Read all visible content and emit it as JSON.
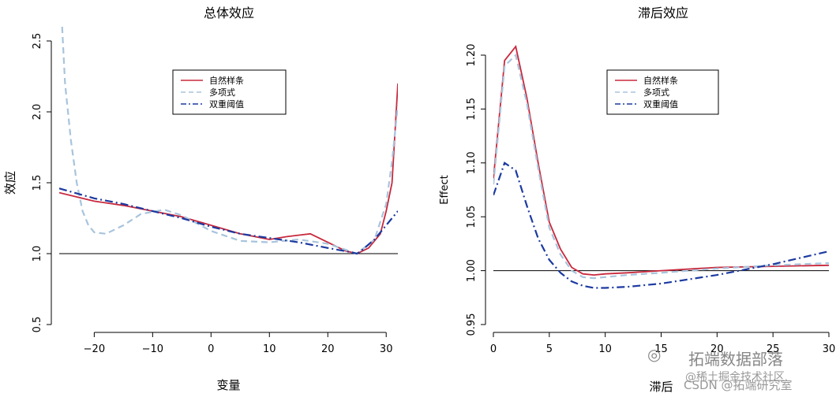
{
  "chart_data": [
    {
      "type": "line",
      "title": "总体效应",
      "xlabel": "变量",
      "ylabel": "效应",
      "xlim": [
        -26,
        32
      ],
      "ylim": [
        0.5,
        2.5
      ],
      "xticks": [
        -20,
        -10,
        0,
        10,
        20,
        30
      ],
      "yticks": [
        0.5,
        1.0,
        1.5,
        2.0,
        2.5
      ],
      "reference_line": 1.0,
      "legend_position": "top-center",
      "series": [
        {
          "name": "自然样条",
          "color": "#c8283c",
          "dash": "solid",
          "x": [
            -26,
            -20,
            -15,
            -10,
            -5,
            0,
            5,
            10,
            13,
            17,
            20,
            23,
            25,
            27,
            29,
            30,
            31,
            32
          ],
          "y": [
            1.43,
            1.37,
            1.34,
            1.3,
            1.26,
            1.2,
            1.14,
            1.1,
            1.12,
            1.14,
            1.08,
            1.02,
            1.0,
            1.04,
            1.14,
            1.3,
            1.5,
            2.2
          ]
        },
        {
          "name": "多项式",
          "color": "#a8c4dc",
          "dash": "dashed",
          "x": [
            -25.5,
            -25,
            -24,
            -23,
            -22,
            -21,
            -20,
            -18,
            -15,
            -12,
            -8,
            -5,
            0,
            5,
            10,
            15,
            20,
            25,
            28,
            30,
            31,
            32
          ],
          "y": [
            2.6,
            2.2,
            1.8,
            1.5,
            1.3,
            1.2,
            1.15,
            1.14,
            1.2,
            1.28,
            1.31,
            1.27,
            1.16,
            1.09,
            1.08,
            1.1,
            1.07,
            1.0,
            1.1,
            1.35,
            1.65,
            2.05
          ]
        },
        {
          "name": "双重阈值",
          "color": "#1c3aa0",
          "dash": "dashdot",
          "x": [
            -26,
            -20,
            -15,
            -10,
            -5,
            0,
            5,
            10,
            15,
            20,
            24,
            25,
            26,
            28,
            30,
            32
          ],
          "y": [
            1.46,
            1.39,
            1.35,
            1.3,
            1.25,
            1.19,
            1.14,
            1.11,
            1.08,
            1.04,
            1.01,
            1.0,
            1.03,
            1.1,
            1.2,
            1.3
          ]
        }
      ]
    },
    {
      "type": "line",
      "title": "滞后效应",
      "xlabel": "滞后",
      "ylabel": "Effect",
      "xlim": [
        0,
        30
      ],
      "ylim": [
        0.95,
        1.2
      ],
      "xticks": [
        0,
        5,
        10,
        15,
        20,
        25,
        30
      ],
      "yticks": [
        0.95,
        1.0,
        1.05,
        1.1,
        1.15,
        1.2
      ],
      "reference_line": 1.0,
      "legend_position": "top-center",
      "series": [
        {
          "name": "自然样条",
          "color": "#c8283c",
          "dash": "solid",
          "x": [
            0,
            1,
            2,
            3,
            4,
            5,
            6,
            7,
            8,
            9,
            10,
            12,
            15,
            20,
            25,
            30
          ],
          "y": [
            1.085,
            1.195,
            1.208,
            1.16,
            1.1,
            1.045,
            1.02,
            1.003,
            0.997,
            0.996,
            0.997,
            0.998,
            1.0,
            1.003,
            1.004,
            1.005
          ]
        },
        {
          "name": "多项式",
          "color": "#a8c4dc",
          "dash": "dashed",
          "x": [
            0,
            1,
            2,
            3,
            4,
            5,
            6,
            7,
            8,
            9,
            10,
            12,
            15,
            20,
            25,
            30
          ],
          "y": [
            1.08,
            1.19,
            1.2,
            1.155,
            1.095,
            1.04,
            1.015,
            1.0,
            0.994,
            0.993,
            0.994,
            0.996,
            0.998,
            1.002,
            1.005,
            1.007
          ]
        },
        {
          "name": "双重阈值",
          "color": "#1c3aa0",
          "dash": "dashdot",
          "x": [
            0,
            1,
            2,
            3,
            4,
            5,
            6,
            7,
            8,
            9,
            10,
            12,
            15,
            20,
            25,
            30
          ],
          "y": [
            1.07,
            1.1,
            1.093,
            1.06,
            1.03,
            1.01,
            0.998,
            0.99,
            0.986,
            0.984,
            0.984,
            0.985,
            0.988,
            0.996,
            1.006,
            1.018
          ]
        }
      ]
    }
  ],
  "watermark": {
    "brand": "拓端数据部落",
    "csdn": "CSDN @拓端研究室",
    "sub": "@稀土掘金技术社区"
  }
}
